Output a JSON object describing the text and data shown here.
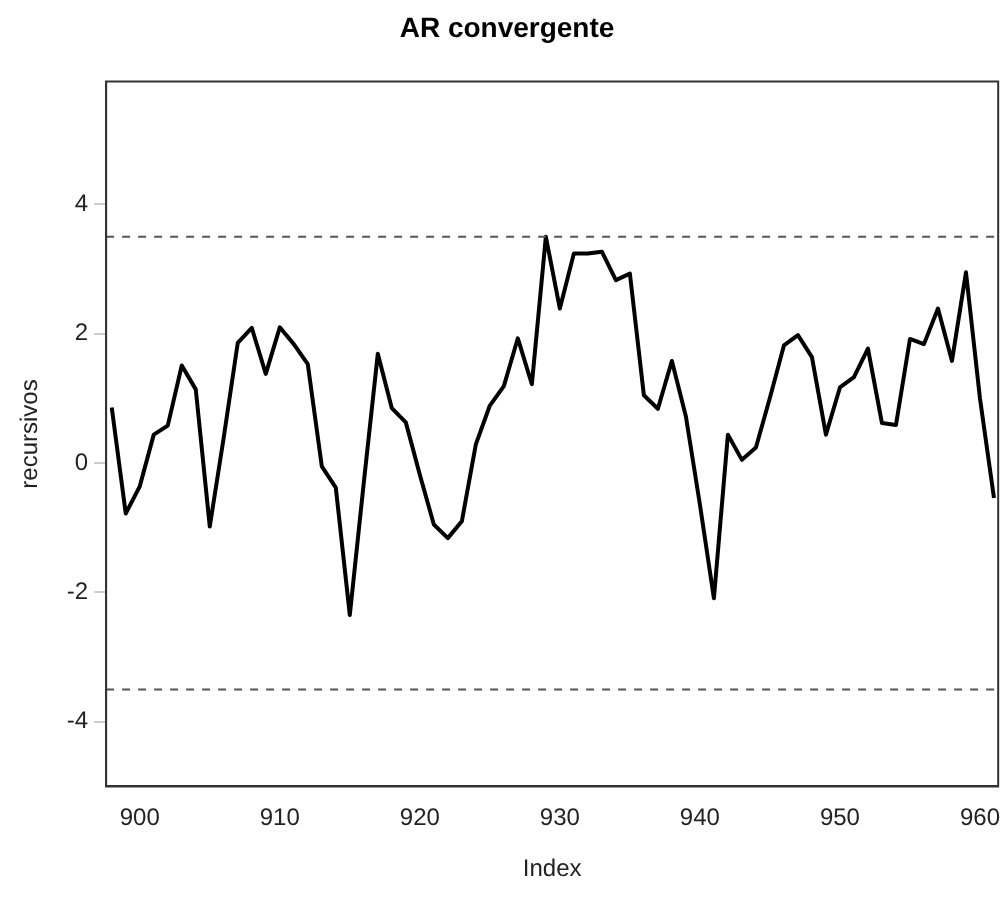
{
  "chart_data": {
    "type": "line",
    "title": "AR convergente",
    "xlabel": "Index",
    "ylabel": "recursivos",
    "x": [
      898,
      899,
      900,
      901,
      902,
      903,
      904,
      905,
      906,
      907,
      908,
      909,
      910,
      911,
      912,
      913,
      914,
      915,
      916,
      917,
      918,
      919,
      920,
      921,
      922,
      923,
      924,
      925,
      926,
      927,
      928,
      929,
      930,
      931,
      932,
      933,
      934,
      935,
      936,
      937,
      938,
      939,
      940,
      941,
      942,
      943,
      944,
      945,
      946,
      947,
      948,
      949,
      950,
      951,
      952,
      953,
      954,
      955,
      956,
      957,
      958,
      959,
      960,
      961
    ],
    "series": [
      {
        "color": "#000000",
        "values": [
          0.86,
          -0.78,
          -0.36,
          0.44,
          0.58,
          1.51,
          1.14,
          -0.98,
          0.4,
          1.86,
          2.09,
          1.38,
          2.1,
          1.84,
          1.53,
          -0.05,
          -0.38,
          -2.35,
          -0.3,
          1.69,
          0.85,
          0.63,
          -0.18,
          -0.95,
          -1.16,
          -0.9,
          0.29,
          0.89,
          1.19,
          1.93,
          1.22,
          3.5,
          2.39,
          3.24,
          3.24,
          3.27,
          2.83,
          2.93,
          1.05,
          0.84,
          1.58,
          0.72,
          -0.64,
          -2.09,
          0.44,
          0.05,
          0.24,
          1.01,
          1.82,
          1.98,
          1.64,
          0.44,
          1.17,
          1.33,
          1.77,
          0.62,
          0.59,
          1.92,
          1.84,
          2.39,
          1.58,
          2.95,
          1.0,
          -0.54
        ]
      }
    ],
    "xlim": [
      897.6,
      961.3
    ],
    "xticks": [
      900,
      910,
      920,
      930,
      940,
      950,
      960
    ],
    "ylim": [
      -5,
      5.9
    ],
    "yticks": [
      -4,
      -2,
      0,
      2,
      4
    ],
    "ref_lines": [
      {
        "axis": "y",
        "value": 3.5,
        "color": "#555555",
        "line_style": "dashed"
      },
      {
        "axis": "y",
        "value": -3.5,
        "color": "#555555",
        "line_style": "dashed"
      }
    ],
    "grid": false,
    "legend": false,
    "marker": "none",
    "line_style": "solid"
  }
}
